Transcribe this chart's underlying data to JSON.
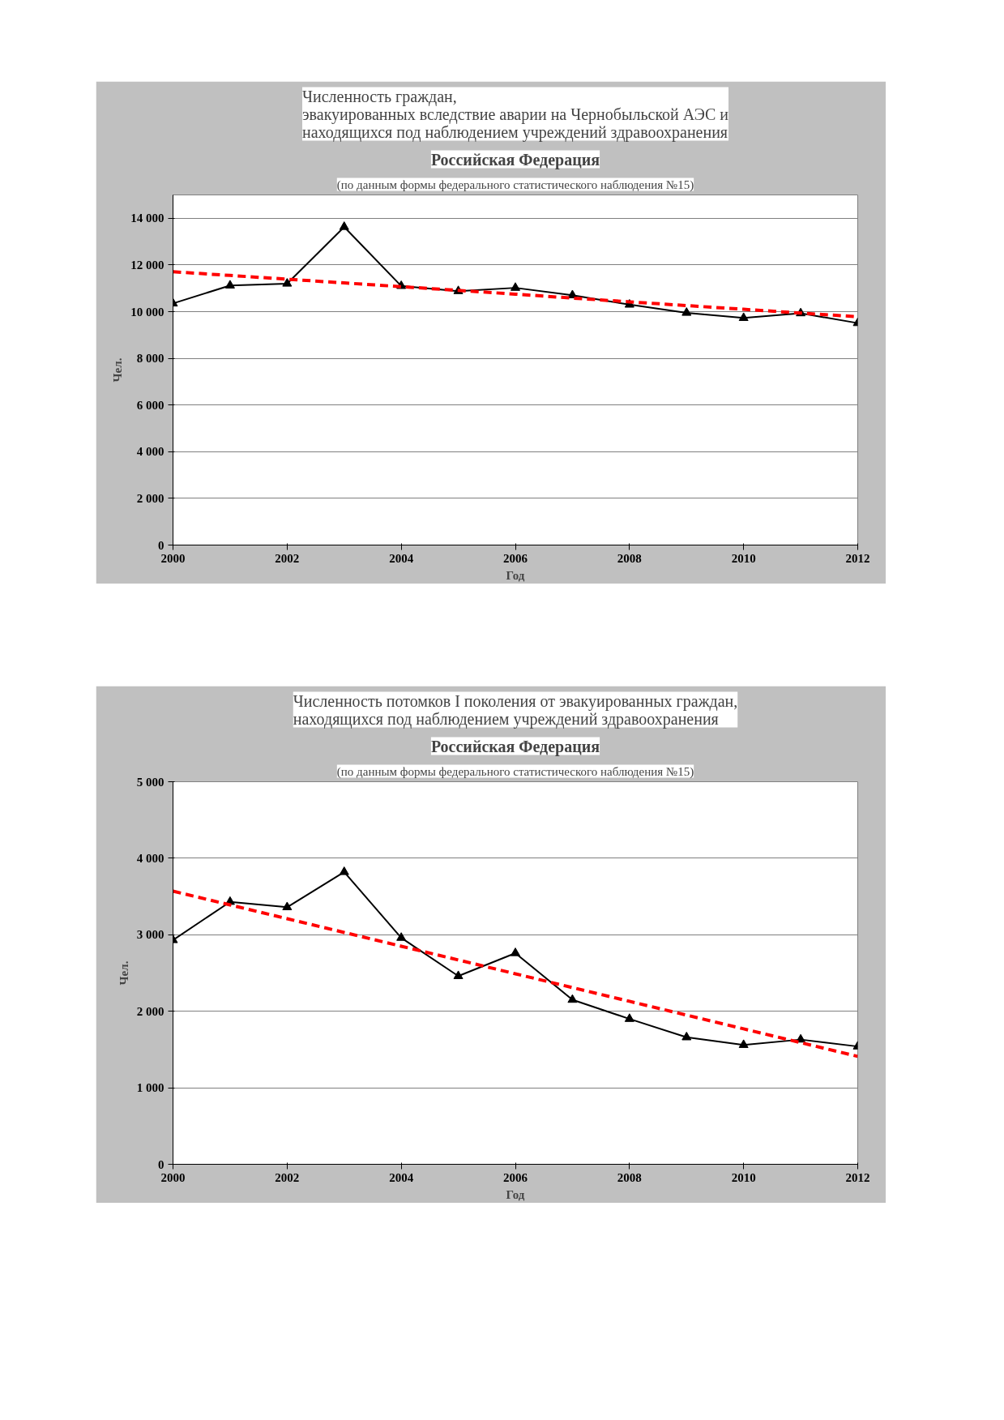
{
  "chart_data": [
    {
      "type": "line",
      "title": "Численность граждан,\nэвакуированных вследствие аварии на Чернобыльской АЭС и\nнаходящихся под наблюдением учреждений здравоохранения",
      "subtitle": "Российская Федерация",
      "annotations": [
        "(по данным формы федерального статистического наблюдения №15)"
      ],
      "xlabel": "Год",
      "ylabel": "Чел.",
      "x": [
        2000,
        2001,
        2002,
        2003,
        2004,
        2005,
        2006,
        2007,
        2008,
        2009,
        2010,
        2011,
        2012
      ],
      "series": [
        {
          "color": "#000000",
          "marker": "triangle",
          "line_style": "solid",
          "values": [
            10350,
            11120,
            11200,
            13630,
            11100,
            10880,
            11020,
            10700,
            10300,
            9950,
            9730,
            9930,
            9510
          ]
        },
        {
          "color": "#ff0000",
          "marker": "none",
          "line_style": "dashed",
          "values": [
            11710,
            11550,
            11390,
            11230,
            11070,
            10910,
            10750,
            10580,
            10420,
            10260,
            10100,
            9940,
            9780
          ]
        }
      ],
      "xlim": [
        2000,
        2012
      ],
      "xticks": [
        2000,
        2002,
        2004,
        2006,
        2008,
        2010,
        2012
      ],
      "ylim": [
        0,
        15000
      ],
      "yticks": [
        {
          "value": 0,
          "label": "0"
        },
        {
          "value": 2000,
          "label": "2 000"
        },
        {
          "value": 4000,
          "label": "4 000"
        },
        {
          "value": 6000,
          "label": "6 000"
        },
        {
          "value": 8000,
          "label": "8 000"
        },
        {
          "value": 10000,
          "label": "10 000"
        },
        {
          "value": 12000,
          "label": "12 000"
        },
        {
          "value": 14000,
          "label": "14 000"
        }
      ],
      "grid": "y"
    },
    {
      "type": "line",
      "title": "Численность потомков I поколения от эвакуированных граждан,\nнаходящихся под наблюдением учреждений здравоохранения",
      "subtitle": "Российская Федерация",
      "annotations": [
        "(по данным формы федерального статистического наблюдения №15)"
      ],
      "xlabel": "Год",
      "ylabel": "Чел.",
      "x": [
        2000,
        2001,
        2002,
        2003,
        2004,
        2005,
        2006,
        2007,
        2008,
        2009,
        2010,
        2011,
        2012
      ],
      "series": [
        {
          "color": "#000000",
          "marker": "triangle",
          "line_style": "solid",
          "values": [
            2930,
            3430,
            3360,
            3820,
            2960,
            2460,
            2760,
            2150,
            1900,
            1660,
            1560,
            1630,
            1540
          ]
        },
        {
          "color": "#ff0000",
          "marker": "none",
          "line_style": "dashed",
          "values": [
            3570,
            3390,
            3210,
            3030,
            2850,
            2670,
            2490,
            2310,
            2130,
            1950,
            1770,
            1590,
            1410
          ]
        }
      ],
      "xlim": [
        2000,
        2012
      ],
      "xticks": [
        2000,
        2002,
        2004,
        2006,
        2008,
        2010,
        2012
      ],
      "ylim": [
        0,
        5000
      ],
      "yticks": [
        {
          "value": 0,
          "label": "0"
        },
        {
          "value": 1000,
          "label": "1 000"
        },
        {
          "value": 2000,
          "label": "2 000"
        },
        {
          "value": 3000,
          "label": "3 000"
        },
        {
          "value": 4000,
          "label": "4 000"
        },
        {
          "value": 5000,
          "label": "5 000"
        }
      ],
      "grid": "y"
    }
  ]
}
